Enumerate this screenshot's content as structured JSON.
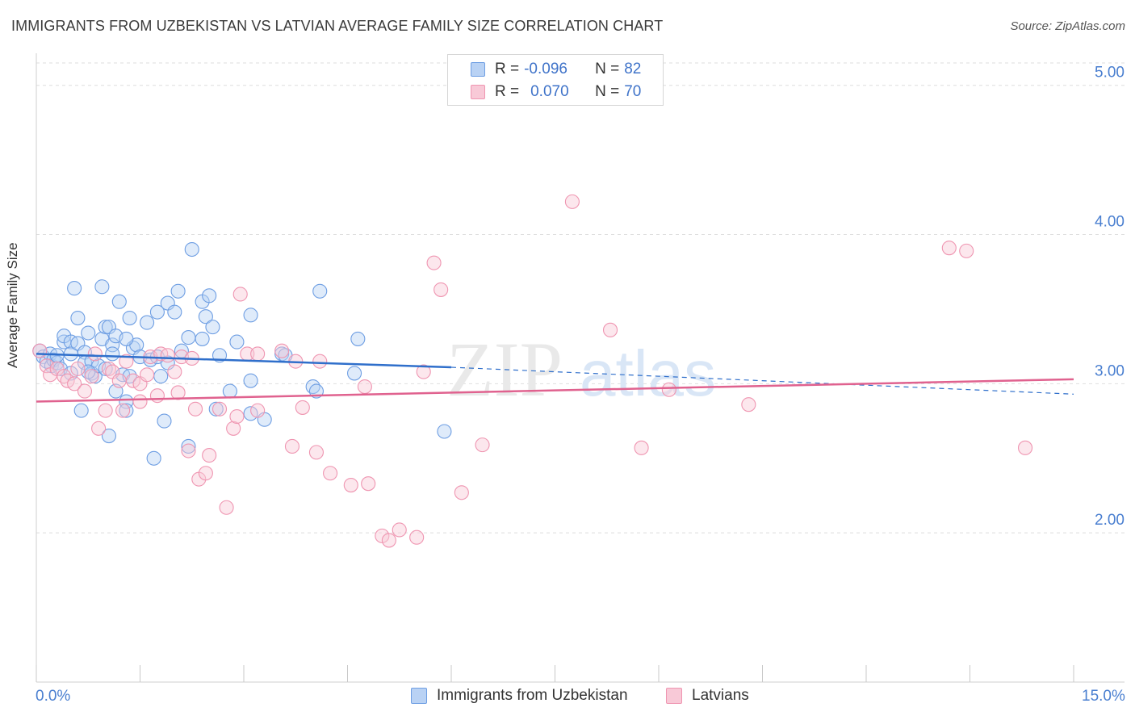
{
  "title": "IMMIGRANTS FROM UZBEKISTAN VS LATVIAN AVERAGE FAMILY SIZE CORRELATION CHART",
  "source": "Source: ZipAtlas.com",
  "watermark": {
    "zip": "ZIP",
    "atlas": "atlas"
  },
  "legend": {
    "rows": [
      {
        "r_label": "R = ",
        "r_value": "-0.096",
        "n_label": "N = ",
        "n_value": "82"
      },
      {
        "r_label": "R = ",
        "r_value": "0.070",
        "n_label": "N = ",
        "n_value": "70"
      }
    ]
  },
  "x_tick_left": "0.0%",
  "x_tick_right": "15.0%",
  "colors": {
    "blue": "#4a84d6",
    "pink": "#e8739b",
    "blue_line": "#2f6fcb",
    "pink_line": "#e0628f",
    "tick": "#4a7fd0"
  },
  "chart_data": {
    "type": "scatter",
    "title": "IMMIGRANTS FROM UZBEKISTAN VS LATVIAN AVERAGE FAMILY SIZE CORRELATION CHART",
    "xlabel": "",
    "ylabel": "Average Family Size",
    "xlim": [
      0,
      15
    ],
    "ylim": [
      1.0,
      5.15
    ],
    "y_ticks": [
      2.0,
      3.0,
      4.0,
      5.0
    ],
    "y_tick_labels": [
      "2.00",
      "3.00",
      "4.00",
      "5.00"
    ],
    "grid": true,
    "legend_position": "top-center",
    "series": [
      {
        "name": "Immigrants from Uzbekistan",
        "color": "#4a84d6",
        "r": -0.096,
        "n": 82,
        "trend": {
          "x": [
            0,
            6.0,
            15.0
          ],
          "y": [
            3.2,
            3.11,
            2.93
          ],
          "solid_until": 6.0
        },
        "points": [
          [
            0.05,
            3.22
          ],
          [
            0.1,
            3.18
          ],
          [
            0.15,
            3.15
          ],
          [
            0.2,
            3.2
          ],
          [
            0.22,
            3.12
          ],
          [
            0.25,
            3.16
          ],
          [
            0.3,
            3.14
          ],
          [
            0.3,
            3.19
          ],
          [
            0.35,
            3.1
          ],
          [
            0.4,
            3.28
          ],
          [
            0.4,
            3.32
          ],
          [
            0.5,
            3.28
          ],
          [
            0.5,
            3.2
          ],
          [
            0.5,
            3.07
          ],
          [
            0.55,
            3.64
          ],
          [
            0.6,
            3.44
          ],
          [
            0.6,
            3.27
          ],
          [
            0.65,
            2.82
          ],
          [
            0.7,
            3.21
          ],
          [
            0.7,
            3.14
          ],
          [
            0.75,
            3.34
          ],
          [
            0.8,
            3.15
          ],
          [
            0.8,
            3.07
          ],
          [
            0.85,
            3.05
          ],
          [
            0.9,
            3.12
          ],
          [
            0.95,
            3.65
          ],
          [
            0.95,
            3.3
          ],
          [
            1.0,
            3.38
          ],
          [
            1.05,
            3.38
          ],
          [
            1.05,
            2.65
          ],
          [
            1.1,
            3.26
          ],
          [
            1.1,
            3.2
          ],
          [
            1.15,
            2.95
          ],
          [
            1.15,
            3.32
          ],
          [
            1.2,
            3.55
          ],
          [
            1.25,
            3.06
          ],
          [
            1.3,
            2.88
          ],
          [
            1.3,
            2.82
          ],
          [
            1.35,
            3.44
          ],
          [
            1.35,
            3.05
          ],
          [
            1.4,
            3.24
          ],
          [
            1.45,
            3.26
          ],
          [
            1.5,
            3.18
          ],
          [
            1.6,
            3.41
          ],
          [
            1.65,
            3.16
          ],
          [
            1.7,
            2.5
          ],
          [
            1.75,
            3.48
          ],
          [
            1.75,
            3.18
          ],
          [
            1.8,
            3.05
          ],
          [
            1.85,
            2.75
          ],
          [
            1.9,
            3.54
          ],
          [
            1.9,
            3.14
          ],
          [
            2.0,
            3.48
          ],
          [
            2.05,
            3.62
          ],
          [
            2.1,
            3.22
          ],
          [
            2.2,
            2.58
          ],
          [
            2.2,
            3.31
          ],
          [
            2.25,
            3.9
          ],
          [
            2.4,
            3.55
          ],
          [
            2.4,
            3.3
          ],
          [
            2.45,
            3.45
          ],
          [
            2.5,
            3.59
          ],
          [
            2.55,
            3.38
          ],
          [
            2.6,
            2.83
          ],
          [
            2.65,
            3.19
          ],
          [
            2.8,
            2.95
          ],
          [
            2.9,
            3.28
          ],
          [
            3.1,
            3.02
          ],
          [
            3.1,
            3.46
          ],
          [
            3.1,
            2.8
          ],
          [
            3.3,
            2.76
          ],
          [
            3.55,
            3.2
          ],
          [
            3.6,
            3.19
          ],
          [
            4.0,
            2.98
          ],
          [
            4.05,
            2.95
          ],
          [
            4.1,
            3.62
          ],
          [
            4.6,
            3.07
          ],
          [
            4.65,
            3.3
          ],
          [
            5.9,
            2.68
          ],
          [
            1.3,
            3.3
          ],
          [
            0.75,
            3.08
          ],
          [
            1.0,
            3.1
          ]
        ]
      },
      {
        "name": "Latvians",
        "color": "#e8739b",
        "r": 0.07,
        "n": 70,
        "trend": {
          "x": [
            0,
            15.0
          ],
          "y": [
            2.88,
            3.03
          ]
        },
        "points": [
          [
            0.05,
            3.22
          ],
          [
            0.15,
            3.12
          ],
          [
            0.2,
            3.06
          ],
          [
            0.3,
            3.1
          ],
          [
            0.4,
            3.05
          ],
          [
            0.45,
            3.02
          ],
          [
            0.55,
            3.0
          ],
          [
            0.6,
            3.1
          ],
          [
            0.7,
            2.95
          ],
          [
            0.8,
            3.05
          ],
          [
            0.85,
            3.2
          ],
          [
            0.9,
            2.7
          ],
          [
            1.0,
            2.82
          ],
          [
            1.05,
            3.1
          ],
          [
            1.1,
            3.08
          ],
          [
            1.2,
            3.02
          ],
          [
            1.25,
            2.82
          ],
          [
            1.3,
            3.15
          ],
          [
            1.4,
            3.02
          ],
          [
            1.5,
            3.0
          ],
          [
            1.5,
            2.88
          ],
          [
            1.6,
            3.06
          ],
          [
            1.65,
            3.18
          ],
          [
            1.75,
            2.92
          ],
          [
            1.8,
            3.2
          ],
          [
            1.9,
            3.19
          ],
          [
            2.0,
            3.08
          ],
          [
            2.05,
            2.94
          ],
          [
            2.1,
            3.18
          ],
          [
            2.2,
            2.55
          ],
          [
            2.25,
            3.17
          ],
          [
            2.3,
            2.83
          ],
          [
            2.35,
            2.36
          ],
          [
            2.45,
            2.4
          ],
          [
            2.5,
            2.52
          ],
          [
            2.65,
            2.83
          ],
          [
            2.75,
            2.17
          ],
          [
            2.85,
            2.7
          ],
          [
            2.9,
            2.78
          ],
          [
            2.95,
            3.6
          ],
          [
            3.05,
            3.2
          ],
          [
            3.2,
            3.2
          ],
          [
            3.2,
            2.82
          ],
          [
            3.55,
            3.22
          ],
          [
            3.7,
            2.58
          ],
          [
            3.75,
            3.15
          ],
          [
            3.85,
            2.84
          ],
          [
            4.05,
            2.54
          ],
          [
            4.1,
            3.15
          ],
          [
            4.25,
            2.4
          ],
          [
            4.55,
            2.32
          ],
          [
            4.75,
            2.98
          ],
          [
            4.8,
            2.33
          ],
          [
            5.0,
            1.98
          ],
          [
            5.1,
            1.95
          ],
          [
            5.25,
            2.02
          ],
          [
            5.5,
            1.97
          ],
          [
            5.6,
            3.08
          ],
          [
            5.75,
            3.81
          ],
          [
            5.85,
            3.63
          ],
          [
            6.15,
            2.27
          ],
          [
            6.45,
            2.59
          ],
          [
            7.75,
            4.22
          ],
          [
            8.3,
            3.36
          ],
          [
            8.75,
            2.57
          ],
          [
            9.15,
            2.96
          ],
          [
            10.3,
            2.86
          ],
          [
            13.2,
            3.91
          ],
          [
            13.45,
            3.89
          ],
          [
            14.3,
            2.57
          ]
        ]
      }
    ]
  }
}
